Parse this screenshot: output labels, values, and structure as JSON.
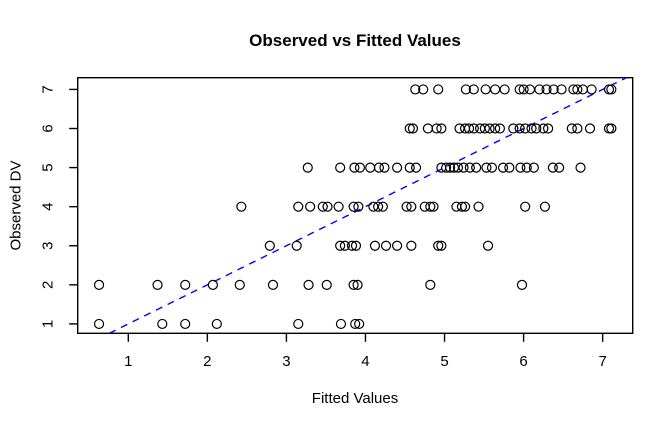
{
  "chart_data": {
    "type": "scatter",
    "title": "Observed vs Fitted Values",
    "xlabel": "Fitted Values",
    "ylabel": "Observed DV",
    "xlim": [
      0.36,
      7.38
    ],
    "ylim": [
      0.76,
      7.3
    ],
    "xticks": [
      1,
      2,
      3,
      4,
      5,
      6,
      7
    ],
    "yticks": [
      1,
      2,
      3,
      4,
      5,
      6,
      7
    ],
    "grid": false,
    "legend": "none",
    "marker": "open-circle",
    "marker_color": "#000000",
    "background_color": "#ffffff",
    "box_color": "#000000",
    "reference_line": {
      "description": "identity line y = x",
      "slope": 1,
      "intercept": 0,
      "style": "dashed",
      "color": "#0000FF"
    },
    "series": [
      {
        "name": "observed-1",
        "observed": 1,
        "fitted": [
          0.63,
          1.43,
          1.72,
          2.12,
          3.15,
          3.69,
          3.87,
          3.92
        ]
      },
      {
        "name": "observed-2",
        "observed": 2,
        "fitted": [
          0.63,
          1.37,
          1.72,
          2.07,
          2.41,
          2.83,
          3.28,
          3.51,
          3.85,
          3.9,
          4.82,
          5.98
        ]
      },
      {
        "name": "observed-3",
        "observed": 3,
        "fitted": [
          2.79,
          3.13,
          3.68,
          3.74,
          3.83,
          3.88,
          4.12,
          4.26,
          4.4,
          4.58,
          4.92,
          4.96,
          5.55
        ]
      },
      {
        "name": "observed-4",
        "observed": 4,
        "fitted": [
          2.43,
          3.15,
          3.3,
          3.46,
          3.52,
          3.66,
          3.85,
          3.91,
          4.1,
          4.16,
          4.22,
          4.52,
          4.58,
          4.75,
          4.82,
          4.86,
          5.15,
          5.22,
          5.26,
          5.43,
          6.02,
          6.27
        ]
      },
      {
        "name": "observed-5",
        "observed": 5,
        "fitted": [
          3.27,
          3.68,
          3.86,
          3.93,
          4.06,
          4.17,
          4.24,
          4.4,
          4.56,
          4.64,
          4.96,
          5.02,
          5.07,
          5.12,
          5.17,
          5.24,
          5.32,
          5.4,
          5.53,
          5.6,
          5.74,
          5.82,
          5.96,
          6.04,
          6.13,
          6.37,
          6.45,
          6.72
        ]
      },
      {
        "name": "observed-6",
        "observed": 6,
        "fitted": [
          4.56,
          4.6,
          4.79,
          4.9,
          4.96,
          5.19,
          5.26,
          5.31,
          5.37,
          5.45,
          5.51,
          5.57,
          5.64,
          5.7,
          5.87,
          5.95,
          6.02,
          6.1,
          6.16,
          6.25,
          6.31,
          6.61,
          6.68,
          6.84,
          7.08,
          7.11
        ]
      },
      {
        "name": "observed-7",
        "observed": 7,
        "fitted": [
          4.63,
          4.73,
          4.92,
          5.27,
          5.37,
          5.52,
          5.64,
          5.76,
          5.95,
          6.0,
          6.08,
          6.2,
          6.29,
          6.38,
          6.48,
          6.63,
          6.68,
          6.75,
          6.86,
          7.08,
          7.11
        ]
      }
    ]
  }
}
